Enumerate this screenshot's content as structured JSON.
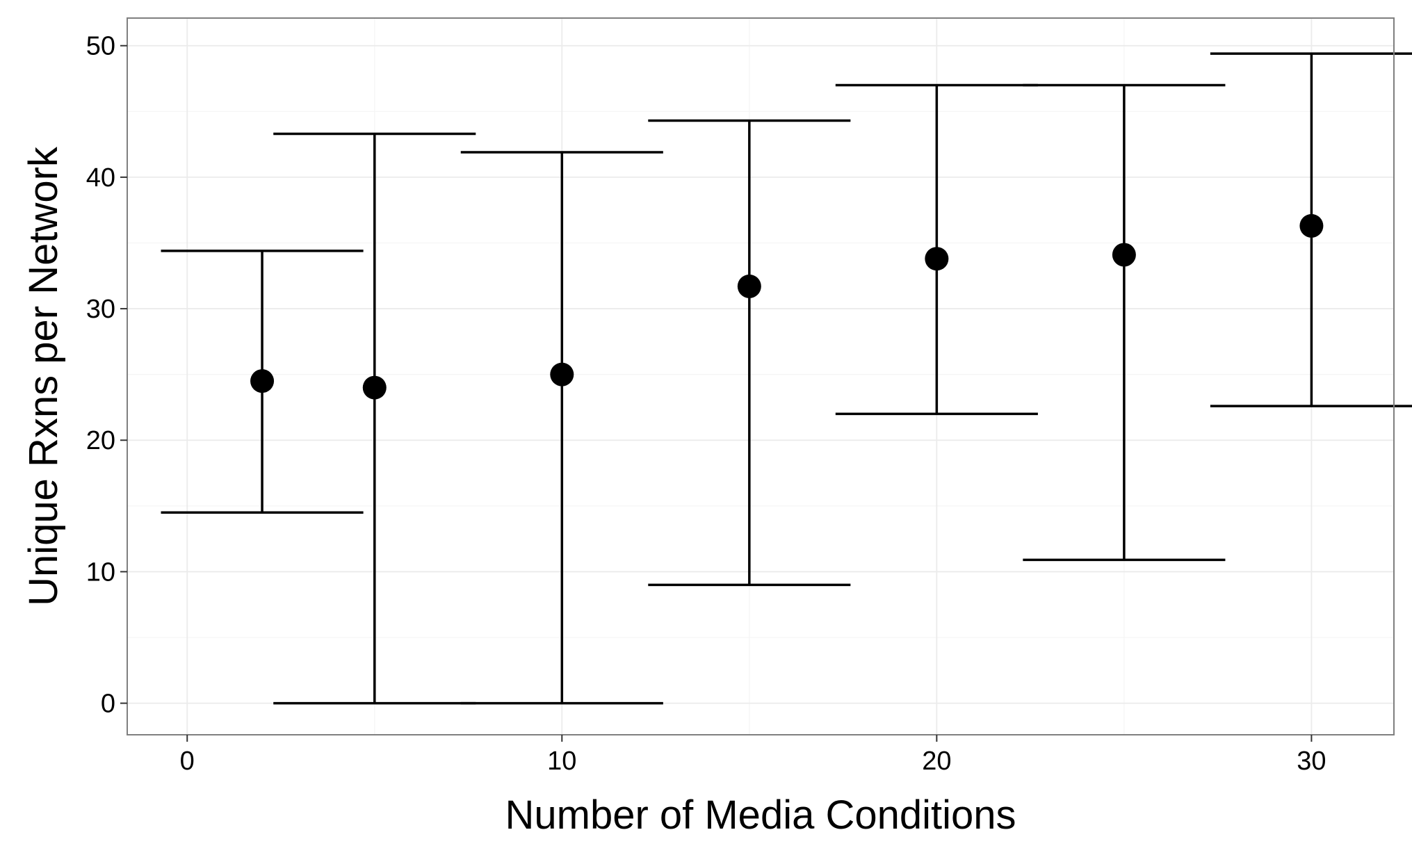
{
  "chart_data": {
    "type": "scatter",
    "title": "",
    "xlabel": "Number of Media Conditions",
    "ylabel": "Unique Rxns per Network",
    "xlim": [
      -1.6,
      32.2
    ],
    "ylim": [
      -2.4,
      52.1
    ],
    "x_ticks": [
      0,
      10,
      20,
      30
    ],
    "y_ticks": [
      0,
      10,
      20,
      30,
      40,
      50
    ],
    "x_tick_labels": [
      "0",
      "10",
      "20",
      "30"
    ],
    "y_tick_labels": [
      "0",
      "10",
      "20",
      "30",
      "40",
      "50"
    ],
    "grid": true,
    "legend": "none",
    "error_bar_half_width": 2.7,
    "points": [
      {
        "x": 2,
        "y": 24.5,
        "ymin": 14.5,
        "ymax": 34.4
      },
      {
        "x": 5,
        "y": 24.0,
        "ymin": 0.0,
        "ymax": 43.3
      },
      {
        "x": 10,
        "y": 25.0,
        "ymin": 0.0,
        "ymax": 41.9
      },
      {
        "x": 15,
        "y": 31.7,
        "ymin": 9.0,
        "ymax": 44.3
      },
      {
        "x": 20,
        "y": 33.8,
        "ymin": 22.0,
        "ymax": 47.0
      },
      {
        "x": 25,
        "y": 34.1,
        "ymin": 10.9,
        "ymax": 47.0
      },
      {
        "x": 30,
        "y": 36.3,
        "ymin": 22.6,
        "ymax": 49.4
      }
    ],
    "colors": {
      "background": "#ffffff",
      "panel_border": "#7f7f7f",
      "grid_major": "#ebebeb",
      "grid_minor": "#f5f5f5",
      "tick": "#333333",
      "marks": "#000000"
    }
  }
}
